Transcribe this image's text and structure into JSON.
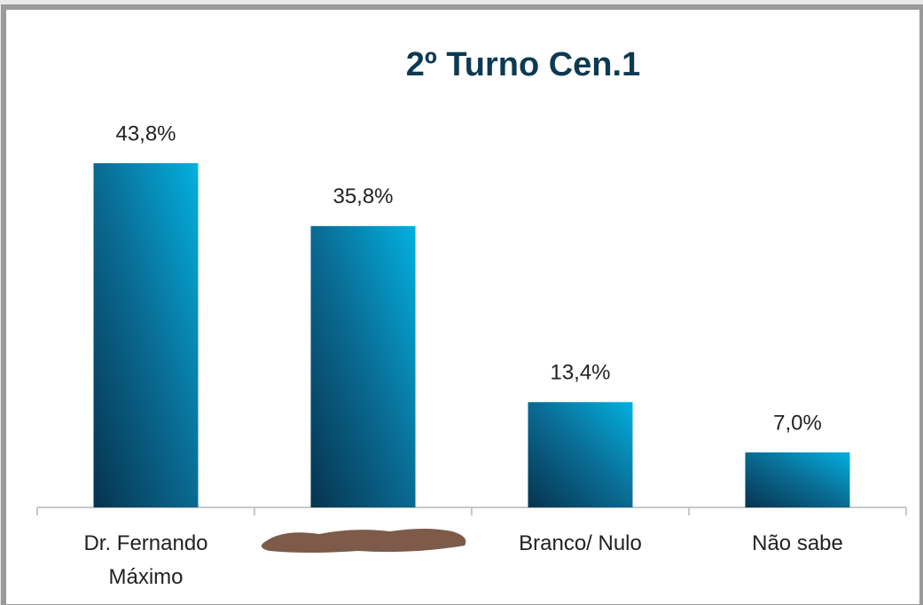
{
  "chart_data": {
    "type": "bar",
    "title": "2º Turno Cen.1",
    "categories": [
      "Dr. Fernando Máximo",
      null,
      "Branco/ Nulo",
      "Não sabe"
    ],
    "values": [
      43.8,
      35.8,
      13.4,
      7.0
    ],
    "value_labels": [
      "43,8%",
      "35,8%",
      "13,4%",
      "7,0%"
    ],
    "color": "#0a8fbd"
  }
}
